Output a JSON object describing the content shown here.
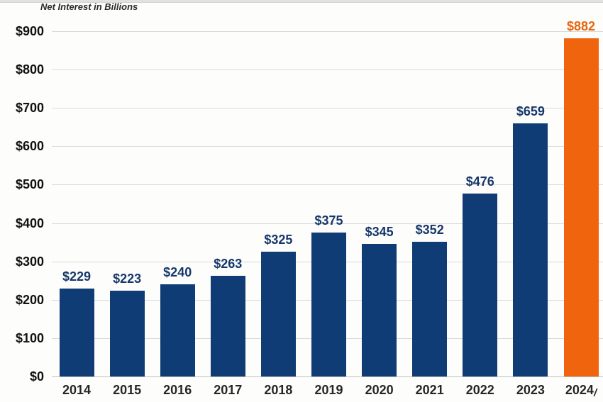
{
  "title": "Net Interest in Billions",
  "chart_data": {
    "type": "bar",
    "title": "Net Interest in Billions",
    "xlabel": "",
    "ylabel": "",
    "categories": [
      "2014",
      "2015",
      "2016",
      "2017",
      "2018",
      "2019",
      "2020",
      "2021",
      "2022",
      "2023",
      "2024"
    ],
    "last_category_suffix": "/",
    "values": [
      229,
      223,
      240,
      263,
      325,
      375,
      345,
      352,
      476,
      659,
      882
    ],
    "value_labels": [
      "$229",
      "$223",
      "$240",
      "$263",
      "$325",
      "$375",
      "$345",
      "$352",
      "$476",
      "$659",
      "$882"
    ],
    "ylim": [
      0,
      900
    ],
    "ytick_values": [
      0,
      100,
      200,
      300,
      400,
      500,
      600,
      700,
      800,
      900
    ],
    "ytick_labels": [
      "$0",
      "$100",
      "$200",
      "$300",
      "$400",
      "$500",
      "$600",
      "$700",
      "$800",
      "$900"
    ],
    "grid": true,
    "legend": false,
    "colors": {
      "bar": "#0f3c74",
      "highlight_bar": "#f0640e",
      "value_label": "#17386b",
      "highlight_value_label": "#e7660e",
      "x_tick": "#262626",
      "y_tick": "#111111",
      "gridline": "#dadada",
      "axis_line": "#bfbfbf"
    },
    "highlight_index": 10
  }
}
